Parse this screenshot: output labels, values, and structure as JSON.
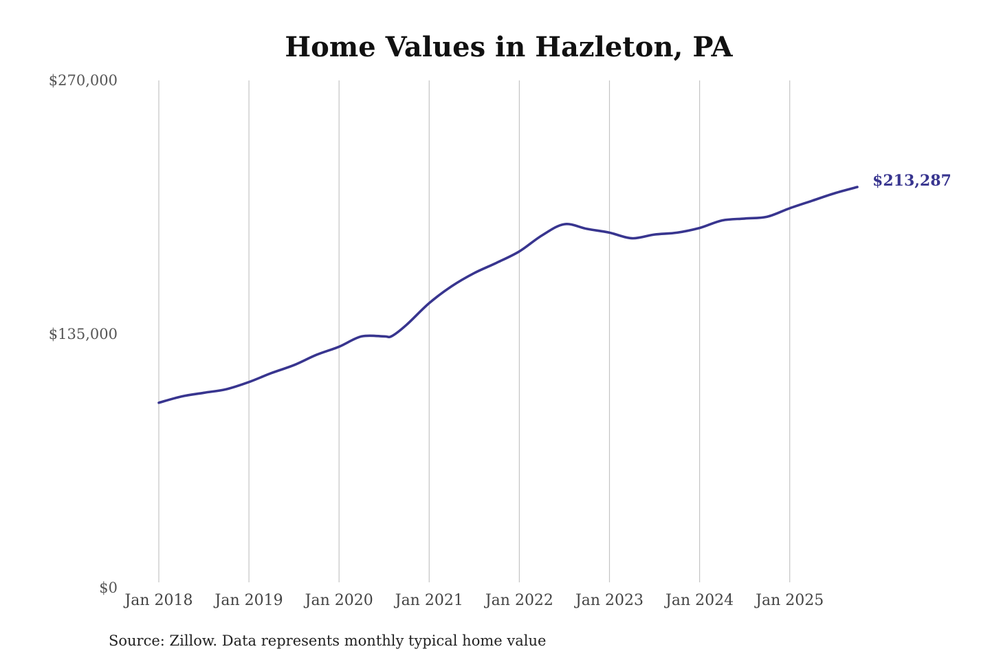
{
  "colors": {
    "line": "#38358f",
    "background": "#ffffff"
  },
  "source": "Source: Zillow. Data represents monthly typical home value",
  "chart_data": {
    "type": "line",
    "title": "Home Values in Hazleton, PA",
    "xlabel": "",
    "ylabel": "",
    "ylim": [
      0,
      270000
    ],
    "grid": {
      "x": true,
      "y": false
    },
    "y_ticks": [
      {
        "value": 0,
        "label": "$0"
      },
      {
        "value": 135000,
        "label": "$135,000"
      },
      {
        "value": 270000,
        "label": "$270,000"
      }
    ],
    "x_ticks": [
      {
        "value": "2018-01",
        "label": "Jan 2018"
      },
      {
        "value": "2019-01",
        "label": "Jan 2019"
      },
      {
        "value": "2020-01",
        "label": "Jan 2020"
      },
      {
        "value": "2021-01",
        "label": "Jan 2021"
      },
      {
        "value": "2022-01",
        "label": "Jan 2022"
      },
      {
        "value": "2023-01",
        "label": "Jan 2023"
      },
      {
        "value": "2024-01",
        "label": "Jan 2024"
      },
      {
        "value": "2025-01",
        "label": "Jan 2025"
      }
    ],
    "end_label": "$213,287",
    "series": [
      {
        "points": [
          [
            "2018-01",
            98500
          ],
          [
            "2018-04",
            101800
          ],
          [
            "2018-07",
            103800
          ],
          [
            "2018-10",
            105700
          ],
          [
            "2019-01",
            109500
          ],
          [
            "2019-04",
            114300
          ],
          [
            "2019-07",
            118500
          ],
          [
            "2019-10",
            124000
          ],
          [
            "2020-01",
            128300
          ],
          [
            "2020-04",
            133800
          ],
          [
            "2020-07",
            133800
          ],
          [
            "2020-08",
            133900
          ],
          [
            "2020-10",
            140000
          ],
          [
            "2021-01",
            151500
          ],
          [
            "2021-04",
            160500
          ],
          [
            "2021-07",
            167500
          ],
          [
            "2021-10",
            173000
          ],
          [
            "2022-01",
            179000
          ],
          [
            "2022-04",
            187500
          ],
          [
            "2022-07",
            193500
          ],
          [
            "2022-10",
            191000
          ],
          [
            "2023-01",
            189000
          ],
          [
            "2023-04",
            186000
          ],
          [
            "2023-07",
            188000
          ],
          [
            "2023-10",
            189000
          ],
          [
            "2024-01",
            191500
          ],
          [
            "2024-04",
            195500
          ],
          [
            "2024-07",
            196500
          ],
          [
            "2024-10",
            197500
          ],
          [
            "2025-01",
            202000
          ],
          [
            "2025-04",
            206000
          ],
          [
            "2025-07",
            210000
          ],
          [
            "2025-10",
            213287
          ]
        ]
      }
    ]
  }
}
